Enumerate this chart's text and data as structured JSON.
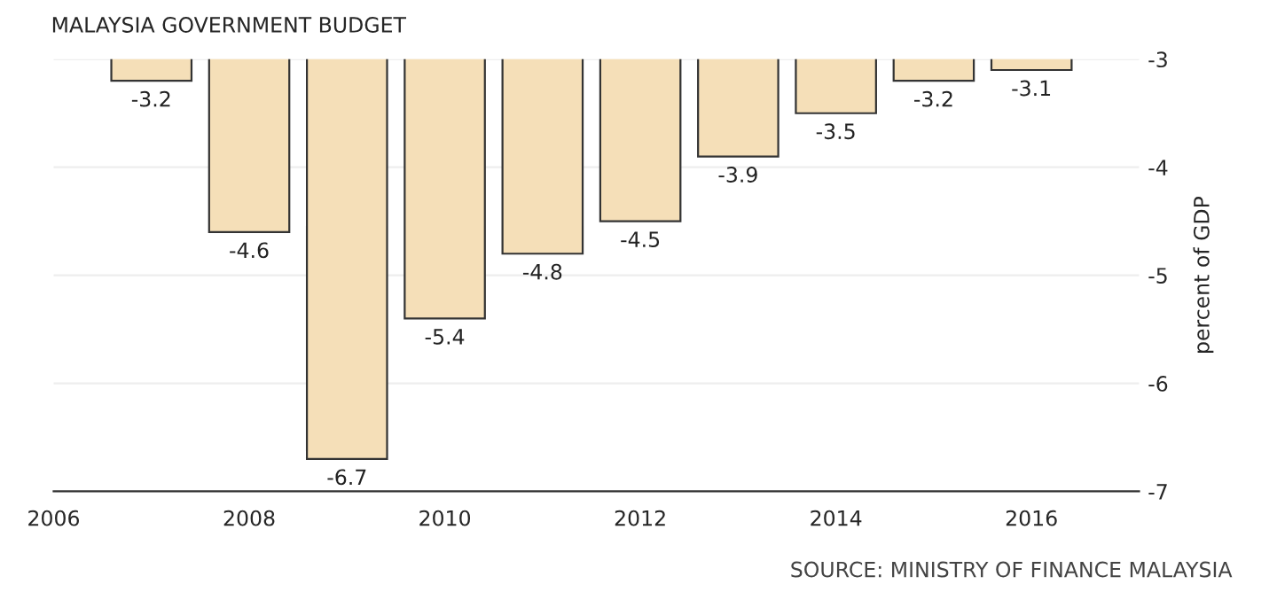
{
  "chart_data": {
    "type": "bar",
    "title": "MALAYSIA GOVERNMENT BUDGET",
    "ylabel": "percent of GDP",
    "x": [
      2007,
      2008,
      2009,
      2010,
      2011,
      2012,
      2013,
      2014,
      2015,
      2016
    ],
    "values": [
      -3.2,
      -4.6,
      -6.7,
      -5.4,
      -4.8,
      -4.5,
      -3.9,
      -3.5,
      -3.2,
      -3.1
    ],
    "color": "#f5dfb8",
    "data_labels": true,
    "xlim": [
      2006,
      2017.1
    ],
    "xticks": [
      2006,
      2008,
      2010,
      2012,
      2014,
      2016
    ],
    "ylim": [
      -7,
      -3
    ],
    "yticks": [
      -7,
      -6,
      -5,
      -4,
      -3
    ],
    "grid": "y",
    "legend": false,
    "annotations": [
      "SOURCE: MINISTRY OF FINANCE MALAYSIA"
    ]
  }
}
